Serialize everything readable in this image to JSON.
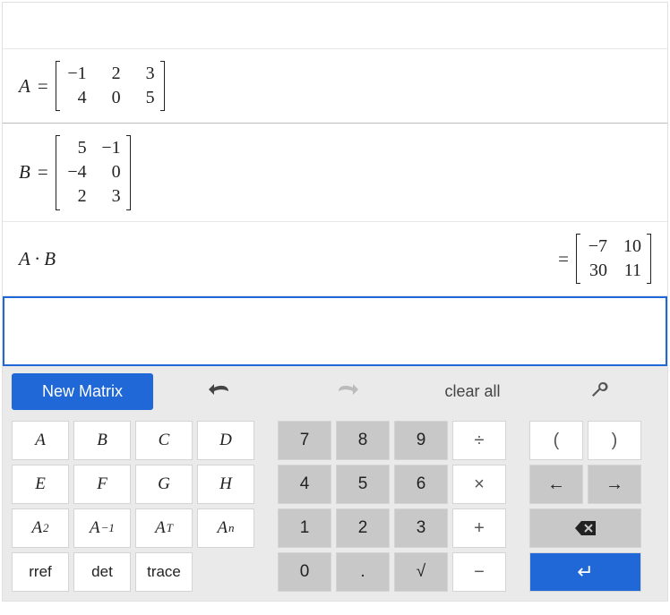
{
  "rows": {
    "matrixA": {
      "var": "A",
      "rows": 2,
      "cols": 3,
      "cells": [
        "−1",
        "2",
        "3",
        "4",
        "0",
        "5"
      ],
      "bracket_height": 56
    },
    "matrixB": {
      "var": "B",
      "rows": 3,
      "cols": 2,
      "cells": [
        "5",
        "−1",
        "−4",
        "0",
        "2",
        "3"
      ],
      "bracket_height": 84
    },
    "expr": {
      "text": "A · B",
      "result_rows": 2,
      "result_cols": 2,
      "result_cells": [
        "−7",
        "10",
        "30",
        "11"
      ],
      "bracket_height": 56
    }
  },
  "toolbar": {
    "new_matrix": "New Matrix",
    "clear_all": "clear all"
  },
  "keys": {
    "vars": [
      "A",
      "B",
      "C",
      "D",
      "E",
      "F",
      "G",
      "H"
    ],
    "funcs": [
      {
        "base": "A",
        "sup": "2"
      },
      {
        "base": "A",
        "sup": "−1"
      },
      {
        "base": "A",
        "sup": "T"
      },
      {
        "base": "A",
        "sup": "n"
      }
    ],
    "ops_row4": [
      "rref",
      "det",
      "trace"
    ],
    "nums": [
      [
        "7",
        "8",
        "9",
        "÷"
      ],
      [
        "4",
        "5",
        "6",
        "×"
      ],
      [
        "1",
        "2",
        "3",
        "+"
      ],
      [
        "0",
        ".",
        "√",
        "−"
      ]
    ],
    "extras": {
      "paren_l": "(",
      "paren_r": ")",
      "arrow_l": "←",
      "arrow_r": "→",
      "enter": "↵"
    }
  },
  "style": {
    "accent": "#2067d8",
    "key_bg": "#ffffff",
    "num_bg": "#c8c8c8",
    "toolbar_bg": "#eaeaea",
    "border": "#e0e0e0",
    "text": "#222222",
    "math_fontsize": 21,
    "key_fontsize": 19
  }
}
